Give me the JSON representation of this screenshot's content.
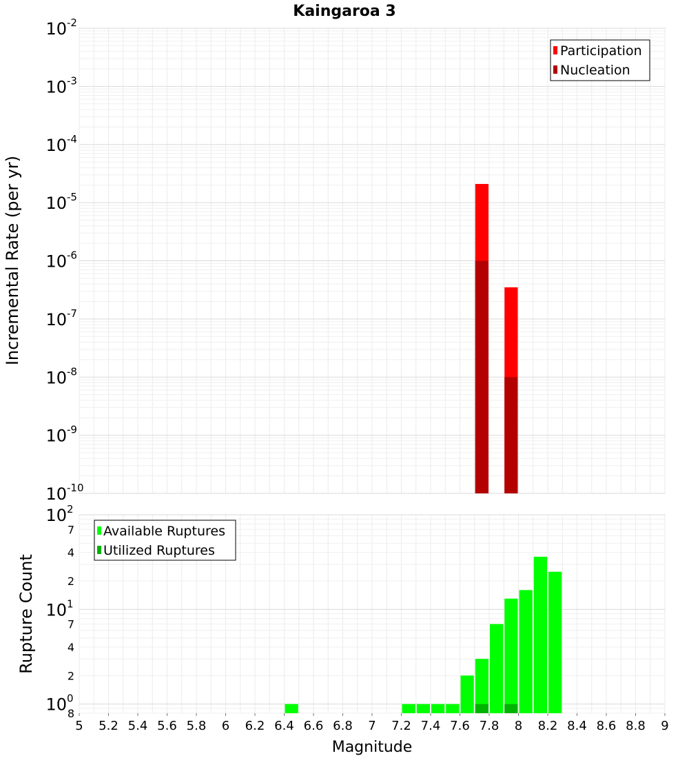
{
  "chart_data": [
    {
      "type": "bar",
      "title": "Kaingaroa 3",
      "ylabel": "Incremental Rate (per yr)",
      "xlabel": "",
      "y_scale": "log",
      "ylim": [
        1e-10,
        0.01
      ],
      "xlim": [
        5,
        9
      ],
      "grid": true,
      "legend_position": "top-right",
      "bin_width": 0.1,
      "y_decades": [
        {
          "base": "10",
          "exp": "-10"
        },
        {
          "base": "10",
          "exp": "-9"
        },
        {
          "base": "10",
          "exp": "-8"
        },
        {
          "base": "10",
          "exp": "-7"
        },
        {
          "base": "10",
          "exp": "-6"
        },
        {
          "base": "10",
          "exp": "-5"
        },
        {
          "base": "10",
          "exp": "-4"
        },
        {
          "base": "10",
          "exp": "-3"
        },
        {
          "base": "10",
          "exp": "-2"
        }
      ],
      "series": [
        {
          "name": "Participation",
          "color": "#ff0000",
          "x": [
            7.75,
            7.95
          ],
          "values": [
            2.1e-05,
            3.5e-07
          ]
        },
        {
          "name": "Nucleation",
          "color": "#b30000",
          "x": [
            7.75,
            7.95
          ],
          "values": [
            1e-06,
            1e-08
          ]
        }
      ]
    },
    {
      "type": "bar",
      "title": "",
      "ylabel": "Rupture Count",
      "xlabel": "Magnitude",
      "y_scale": "log",
      "ylim": [
        0.8,
        100
      ],
      "xlim": [
        5,
        9
      ],
      "grid": true,
      "legend_position": "top-left",
      "bin_width": 0.1,
      "x_ticks": [
        "5",
        "5.2",
        "5.4",
        "5.6",
        "5.8",
        "6",
        "6.2",
        "6.4",
        "6.6",
        "6.8",
        "7",
        "7.2",
        "7.4",
        "7.6",
        "7.8",
        "8",
        "8.2",
        "8.4",
        "8.6",
        "8.8",
        "9"
      ],
      "y_major_ticks": [
        {
          "value": 1,
          "base": "10",
          "exp": "0"
        },
        {
          "value": 10,
          "base": "10",
          "exp": "1"
        },
        {
          "value": 100,
          "base": "10",
          "exp": "2"
        }
      ],
      "y_minor_labels": [
        {
          "value": 0.8,
          "label": "8"
        },
        {
          "value": 2,
          "label": "2"
        },
        {
          "value": 4,
          "label": "4"
        },
        {
          "value": 7,
          "label": "7"
        },
        {
          "value": 20,
          "label": "2"
        },
        {
          "value": 40,
          "label": "4"
        },
        {
          "value": 70,
          "label": "7"
        }
      ],
      "series": [
        {
          "name": "Available Ruptures",
          "color": "#00ff00",
          "x": [
            6.45,
            7.25,
            7.35,
            7.45,
            7.55,
            7.65,
            7.75,
            7.85,
            7.95,
            8.05,
            8.15,
            8.25
          ],
          "values": [
            1,
            1,
            1,
            1,
            1,
            2,
            3,
            7,
            13,
            16,
            36,
            25
          ]
        },
        {
          "name": "Utilized Ruptures",
          "color": "#00b300",
          "x": [
            7.75,
            7.95
          ],
          "values": [
            1,
            1
          ]
        }
      ]
    }
  ]
}
